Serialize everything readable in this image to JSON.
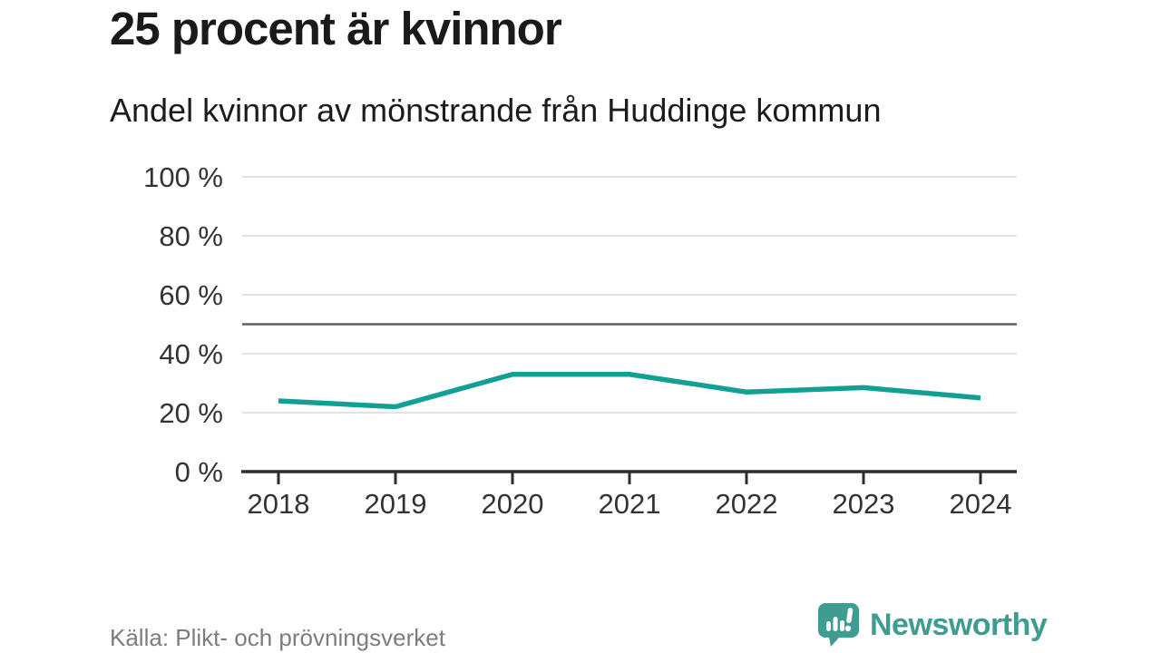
{
  "chart_data": {
    "type": "line",
    "title": "25 procent är kvinnor",
    "subtitle": "Andel kvinnor av mönstrande från Huddinge kommun",
    "x": [
      2018,
      2019,
      2020,
      2021,
      2022,
      2023,
      2024
    ],
    "series": [
      {
        "name": "Andel kvinnor av mönstrande",
        "values": [
          24,
          22,
          33,
          33,
          27,
          28.5,
          25
        ],
        "color": "#12a095"
      }
    ],
    "xlabel": "",
    "ylabel": "",
    "ylim": [
      0,
      100
    ],
    "yticks": [
      0,
      20,
      40,
      60,
      80,
      100
    ],
    "ytick_suffix": " %",
    "reference_line": 50,
    "grid": true,
    "legend": "none",
    "markers": "none"
  },
  "footer": {
    "source": "Källa: Plikt- och prövningsverket",
    "brand": "Newsworthy"
  },
  "colors": {
    "line": "#12a095",
    "brand_teal": "#3f9c90",
    "grid": "#e2e2e2",
    "reference": "#5f5f5f",
    "axis": "#2d2d2d",
    "tick_label": "#333333",
    "title_text": "#1a1a1a",
    "source_text": "#7d7d7d"
  }
}
